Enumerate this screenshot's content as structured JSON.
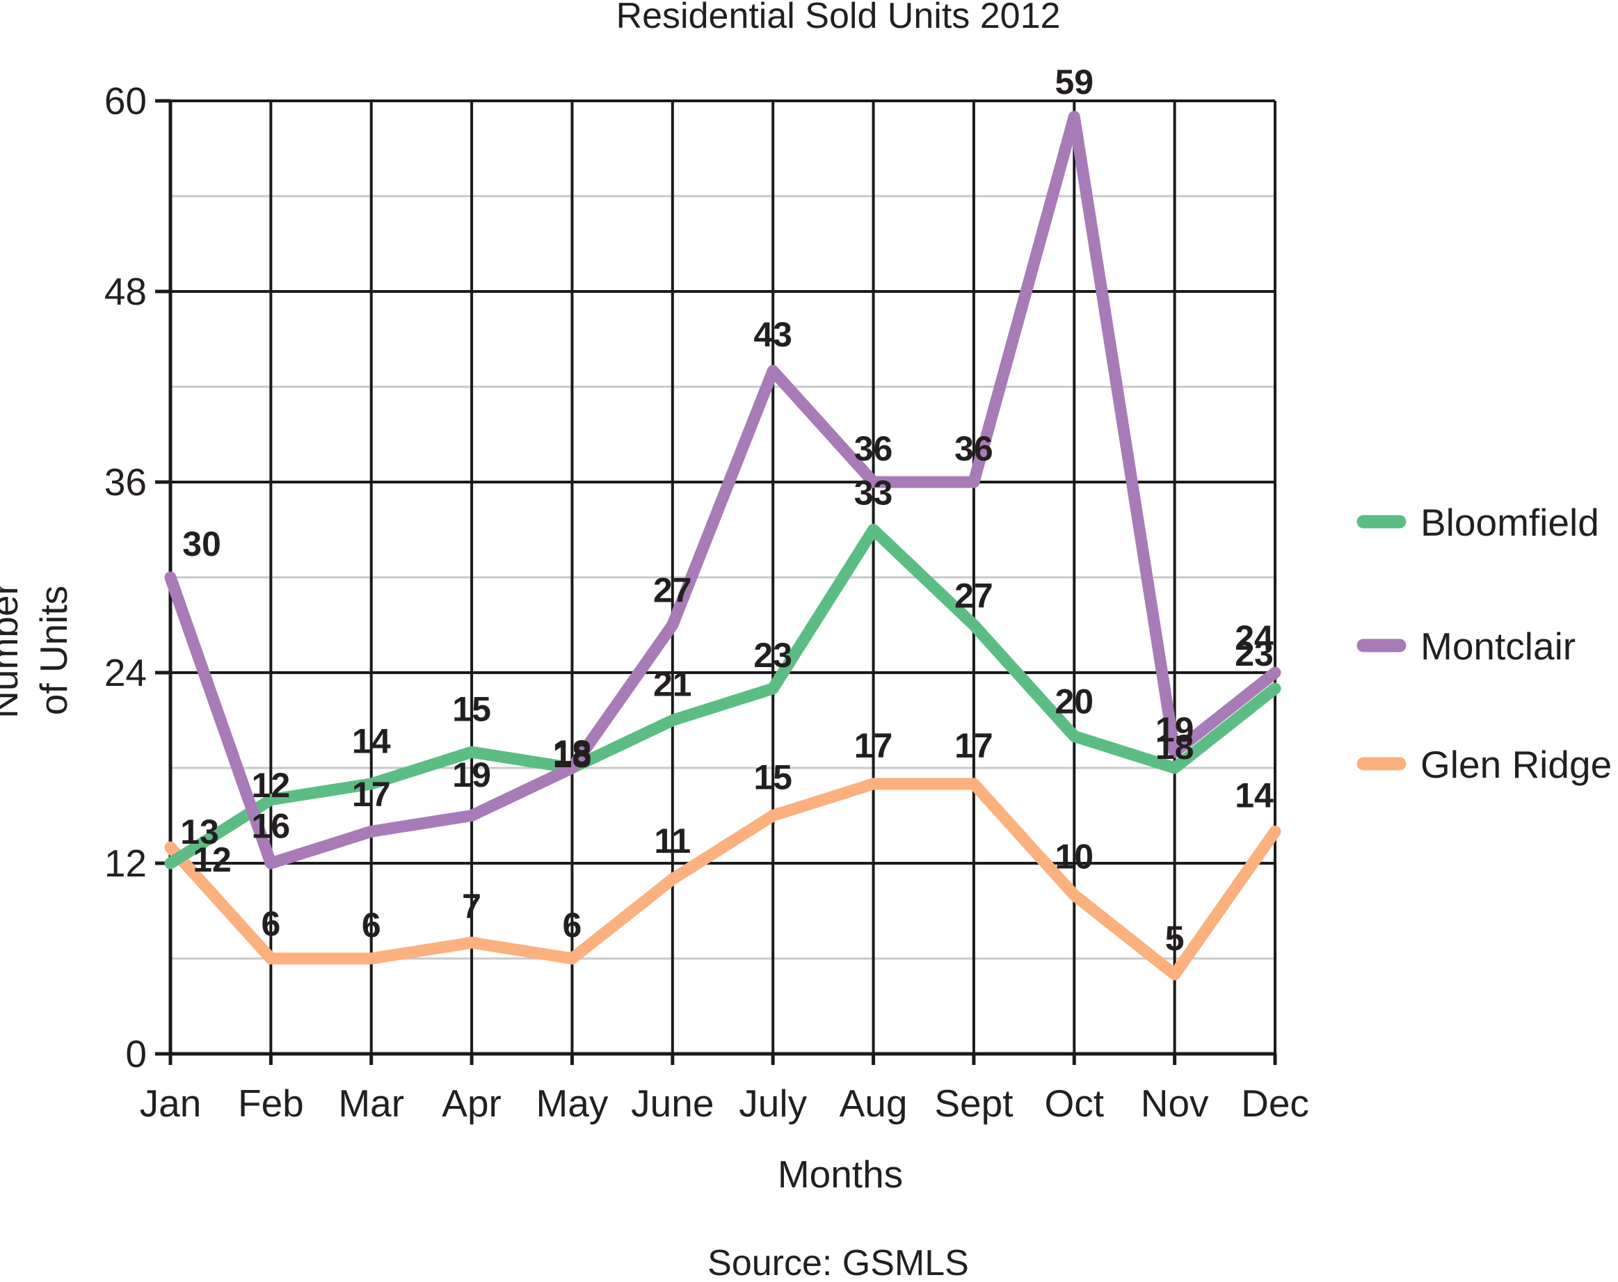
{
  "chart_data": {
    "type": "line",
    "title": "Residential Sold Units 2012",
    "xlabel": "Months",
    "ylabel": "Number of Units",
    "ylabel_lines": [
      "Number",
      "of Units"
    ],
    "categories": [
      "Jan",
      "Feb",
      "Mar",
      "Apr",
      "May",
      "June",
      "July",
      "Aug",
      "Sept",
      "Oct",
      "Nov",
      "Dec"
    ],
    "yticks": [
      "0",
      "12",
      "24",
      "36",
      "48",
      "60"
    ],
    "ylim": [
      0,
      60
    ],
    "grid": true,
    "legend_position": "right",
    "source": "Source: GSMLS",
    "series": [
      {
        "name": "Bloomfield",
        "color": "#5cbd84",
        "values": [
          12,
          16,
          17,
          19,
          18,
          21,
          23,
          33,
          27,
          20,
          18,
          23
        ]
      },
      {
        "name": "Montclair",
        "color": "#a97ab8",
        "values": [
          30,
          12,
          14,
          15,
          18,
          27,
          43,
          36,
          36,
          59,
          19,
          24
        ]
      },
      {
        "name": "Glen Ridge",
        "color": "#fbb07e",
        "values": [
          13,
          6,
          6,
          7,
          6,
          11,
          15,
          17,
          17,
          10,
          5,
          14
        ]
      }
    ]
  }
}
